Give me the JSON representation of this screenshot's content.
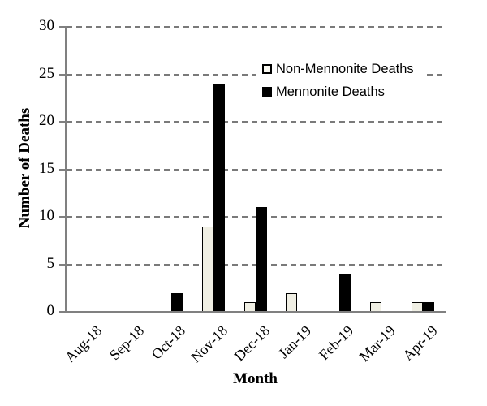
{
  "chart_data": {
    "type": "bar",
    "title": "",
    "categories": [
      "Aug-18",
      "Sep-18",
      "Oct-18",
      "Nov-18",
      "Dec-18",
      "Jan-19",
      "Feb-19",
      "Mar-19",
      "Apr-19"
    ],
    "series": [
      {
        "name": "Non-Mennonite Deaths",
        "values": [
          0,
          0,
          0,
          9,
          1,
          2,
          0,
          1,
          1
        ],
        "fill": "#f0efe4",
        "stroke": "#000000"
      },
      {
        "name": "Mennonite Deaths",
        "values": [
          0,
          0,
          2,
          24,
          11,
          0,
          4,
          0,
          1
        ],
        "fill": "#000000",
        "stroke": "#000000"
      }
    ],
    "xlabel": "Month",
    "ylabel": "Number of Deaths",
    "ylim": [
      0,
      30
    ],
    "yticks": [
      0,
      5,
      10,
      15,
      20,
      25,
      30
    ],
    "grid": "horizontal-dashed",
    "legend_position": "inside-top-right",
    "colors": {
      "axis": "#808080",
      "gridline": "#7a7a7a",
      "text": "#000000",
      "background": "#ffffff"
    }
  }
}
